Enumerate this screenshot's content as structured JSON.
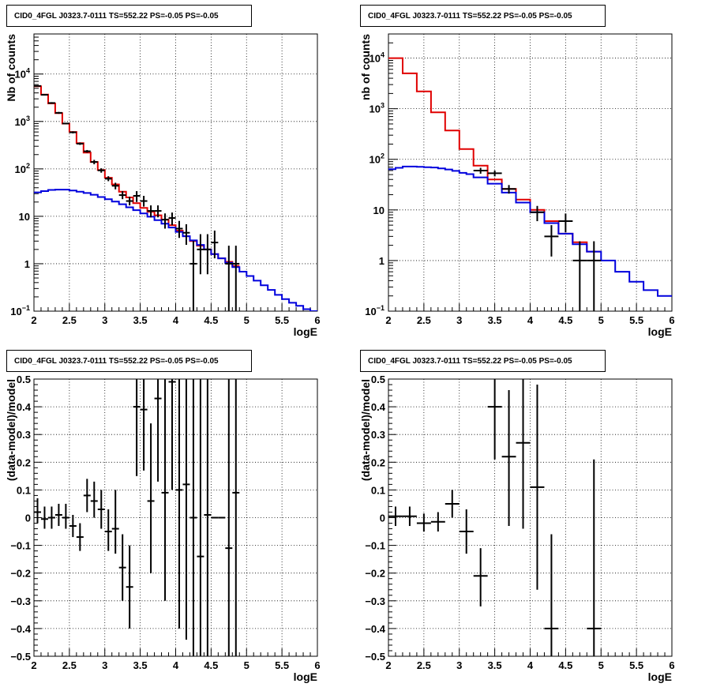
{
  "colors": {
    "background": "#ffffff",
    "axis": "#000000",
    "grid": "#000000",
    "data": "#000000",
    "total_model": "#e00000",
    "source_model": "#0000dd"
  },
  "chart_data": [
    {
      "id": "counts-wide",
      "type": "line",
      "title": "CID0_4FGL J0323.7-0111 TS=552.22 PS=-0.05 PS=-0.05",
      "xlabel": "logE",
      "ylabel": "Nb of counts",
      "xlim": [
        2,
        6
      ],
      "ylim": [
        0.1,
        70000
      ],
      "yscale": "log",
      "grid": true,
      "x_ticks": [
        "2",
        "2.5",
        "3",
        "3.5",
        "4",
        "4.5",
        "5",
        "5.5",
        "6"
      ],
      "y_ticks": [
        {
          "value": 0.1,
          "label": "10",
          "exp": "−1"
        },
        {
          "value": 1,
          "label": "1",
          "exp": ""
        },
        {
          "value": 10,
          "label": "10",
          "exp": ""
        },
        {
          "value": 100,
          "label": "10",
          "exp": "2"
        },
        {
          "value": 1000,
          "label": "10",
          "exp": "3"
        },
        {
          "value": 10000,
          "label": "10",
          "exp": "4"
        }
      ],
      "series": [
        {
          "name": "total model",
          "style": "step",
          "color": "#e00000",
          "edges": [
            2.0,
            2.1,
            2.2,
            2.3,
            2.4,
            2.5,
            2.6,
            2.7,
            2.8,
            2.9,
            3.0,
            3.1,
            3.2,
            3.3,
            3.4,
            3.5,
            3.6,
            3.7,
            3.8,
            3.9,
            4.0,
            4.1,
            4.2,
            4.3,
            4.4,
            4.5,
            4.6,
            4.7,
            4.8,
            4.9
          ],
          "values": [
            5500,
            3700,
            2400,
            1500,
            900,
            600,
            350,
            220,
            140,
            95,
            65,
            47,
            33,
            25,
            19,
            15,
            12.5,
            10.5,
            8.5,
            6.5,
            5,
            3.8,
            3.0,
            2.4,
            2.0,
            1.6,
            1.3,
            1.1,
            0.9
          ]
        },
        {
          "name": "source model",
          "style": "step",
          "color": "#0000dd",
          "edges": [
            2.0,
            2.1,
            2.2,
            2.3,
            2.4,
            2.5,
            2.6,
            2.7,
            2.8,
            2.9,
            3.0,
            3.1,
            3.2,
            3.3,
            3.4,
            3.5,
            3.6,
            3.7,
            3.8,
            3.9,
            4.0,
            4.1,
            4.2,
            4.3,
            4.4,
            4.5,
            4.6,
            4.7,
            4.8,
            4.9,
            5.0,
            5.1,
            5.2,
            5.3,
            5.4,
            5.5,
            5.6,
            5.7,
            5.8,
            5.9,
            6.0
          ],
          "values": [
            32,
            34,
            36,
            36.5,
            36.5,
            35,
            33,
            31,
            28.5,
            25.5,
            23,
            20.5,
            18,
            15.5,
            13.5,
            11.5,
            9.8,
            8.3,
            7,
            5.8,
            4.7,
            3.8,
            3.1,
            2.5,
            2.0,
            1.6,
            1.3,
            1.05,
            0.85,
            0.68,
            0.55,
            0.44,
            0.35,
            0.28,
            0.22,
            0.18,
            0.15,
            0.13,
            0.11,
            0.1
          ]
        },
        {
          "name": "data",
          "style": "errorbar",
          "color": "#000000",
          "x": [
            2.05,
            2.15,
            2.25,
            2.35,
            2.45,
            2.55,
            2.65,
            2.75,
            2.85,
            2.95,
            3.05,
            3.15,
            3.25,
            3.35,
            3.45,
            3.55,
            3.65,
            3.75,
            3.85,
            3.95,
            4.05,
            4.15,
            4.25,
            4.35,
            4.45,
            4.55,
            4.65,
            4.75,
            4.85
          ],
          "xerr": 0.05,
          "y": [
            5600,
            3650,
            2450,
            1520,
            905,
            590,
            340,
            235,
            140,
            93,
            62,
            44,
            28,
            21,
            27,
            21,
            13,
            13,
            8.5,
            9.2,
            5.5,
            4.5,
            1.0,
            2.0,
            2.0,
            2.8,
            0.0,
            1.0,
            1.0
          ],
          "ylow": [
            5450,
            3530,
            2350,
            1450,
            880,
            560,
            320,
            220,
            125,
            83,
            55,
            37,
            23,
            17,
            20,
            16,
            9.5,
            9.5,
            5.5,
            6.5,
            3.5,
            2.5,
            0.1,
            0.6,
            0.6,
            1.3,
            0.1,
            0.1,
            0.1
          ],
          "yhigh": [
            5750,
            3770,
            2550,
            1590,
            930,
            620,
            360,
            250,
            155,
            103,
            70,
            51,
            34,
            26,
            34,
            27,
            17,
            17,
            11.5,
            12,
            8,
            6.8,
            3.0,
            4.2,
            4.2,
            5.0,
            0.1,
            2.4,
            2.4
          ]
        }
      ]
    },
    {
      "id": "counts-coarse",
      "type": "line",
      "title": "CID0_4FGL J0323.7-0111 TS=552.22 PS=-0.05 PS=-0.05",
      "xlabel": "logE",
      "ylabel": "nb of counts",
      "xlim": [
        2,
        6
      ],
      "ylim": [
        0.1,
        30000
      ],
      "yscale": "log",
      "grid": true,
      "x_ticks": [
        "2",
        "2.5",
        "3",
        "3.5",
        "4",
        "4.5",
        "5",
        "5.5",
        "6"
      ],
      "y_ticks": [
        {
          "value": 0.1,
          "label": "10",
          "exp": "−1"
        },
        {
          "value": 1,
          "label": "1",
          "exp": ""
        },
        {
          "value": 10,
          "label": "10",
          "exp": ""
        },
        {
          "value": 100,
          "label": "10",
          "exp": "2"
        },
        {
          "value": 1000,
          "label": "10",
          "exp": "3"
        },
        {
          "value": 10000,
          "label": "10",
          "exp": "4"
        }
      ],
      "series": [
        {
          "name": "total model",
          "style": "step",
          "color": "#e00000",
          "edges": [
            2.0,
            2.2,
            2.4,
            2.6,
            2.8,
            3.0,
            3.2,
            3.4,
            3.6,
            3.8,
            4.0,
            4.2,
            4.4,
            4.6,
            4.8,
            5.0
          ],
          "values": [
            10000,
            5000,
            2200,
            850,
            370,
            160,
            75,
            40,
            26,
            16,
            10,
            6,
            3.4,
            2.3,
            1.5
          ]
        },
        {
          "name": "source model",
          "style": "step",
          "color": "#0000dd",
          "edges": [
            2.0,
            2.1,
            2.2,
            2.3,
            2.4,
            2.5,
            2.6,
            2.7,
            2.8,
            2.9,
            3.0,
            3.1,
            3.2,
            3.4,
            3.6,
            3.8,
            4.0,
            4.2,
            4.4,
            4.6,
            4.8,
            5.0,
            5.2,
            5.4,
            5.6,
            5.8,
            6.0
          ],
          "values": [
            64,
            68,
            72,
            72,
            71,
            70,
            69,
            66,
            63,
            59,
            54,
            51,
            44,
            33,
            22,
            14,
            9,
            5.5,
            3.4,
            2.1,
            1.5,
            1.0,
            0.6,
            0.38,
            0.26,
            0.2
          ]
        },
        {
          "name": "data",
          "style": "errorbar",
          "color": "#000000",
          "x": [
            3.3,
            3.5,
            3.7,
            4.1,
            4.3,
            4.5,
            4.7,
            4.9
          ],
          "xerr": 0.1,
          "y": [
            60,
            53,
            26,
            9,
            3,
            6,
            1,
            1
          ],
          "ylow": [
            52,
            46,
            21,
            6,
            1.2,
            3.6,
            0.1,
            0.1
          ],
          "yhigh": [
            68,
            60,
            31,
            12,
            5,
            8.5,
            2.4,
            2.4
          ]
        }
      ]
    },
    {
      "id": "residuals-wide",
      "type": "scatter",
      "title": "CID0_4FGL J0323.7-0111 TS=552.22 PS=-0.05 PS=-0.05",
      "xlabel": "logE",
      "ylabel": "(data-model)/model",
      "xlim": [
        2,
        6
      ],
      "ylim": [
        -0.5,
        0.5
      ],
      "yscale": "linear",
      "grid": true,
      "x_ticks": [
        "2",
        "2.5",
        "3",
        "3.5",
        "4",
        "4.5",
        "5",
        "5.5",
        "6"
      ],
      "y_ticks": [
        "−0.5",
        "−0.4",
        "−0.3",
        "−0.2",
        "−0.1",
        "0",
        "0.1",
        "0.2",
        "0.3",
        "0.4",
        "0.5"
      ],
      "series": [
        {
          "name": "residuals",
          "style": "errorbar",
          "color": "#000000",
          "x": [
            2.05,
            2.15,
            2.25,
            2.35,
            2.45,
            2.55,
            2.65,
            2.75,
            2.85,
            2.95,
            3.05,
            3.15,
            3.25,
            3.35,
            3.45,
            3.55,
            3.65,
            3.75,
            3.85,
            3.95,
            4.05,
            4.15,
            4.25,
            4.35,
            4.45,
            4.55,
            4.65,
            4.75,
            4.85
          ],
          "xerr": 0.05,
          "y": [
            0.02,
            -0.005,
            0.0,
            0.01,
            0.0,
            -0.03,
            -0.07,
            0.08,
            0.06,
            0.03,
            -0.05,
            -0.04,
            -0.18,
            -0.25,
            0.4,
            0.39,
            0.06,
            0.43,
            0.09,
            0.49,
            0.1,
            0.12,
            0.0,
            -0.14,
            0.01,
            0.0,
            0.0,
            -0.11,
            0.09
          ],
          "ylow": [
            -0.02,
            -0.04,
            -0.04,
            -0.03,
            -0.04,
            -0.07,
            -0.12,
            0.02,
            0.0,
            -0.04,
            -0.12,
            -0.13,
            -0.3,
            -0.4,
            0.15,
            0.17,
            -0.2,
            0.13,
            -0.3,
            0.1,
            -0.4,
            -0.44,
            -0.5,
            -0.5,
            -0.5,
            0.0,
            0.0,
            -0.5,
            -0.5
          ],
          "yhigh": [
            0.07,
            0.04,
            0.04,
            0.05,
            0.05,
            0.01,
            -0.02,
            0.14,
            0.13,
            0.1,
            0.03,
            0.1,
            -0.06,
            -0.1,
            0.5,
            0.5,
            0.34,
            0.5,
            0.5,
            0.5,
            0.5,
            0.5,
            0.5,
            0.5,
            0.5,
            0.0,
            0.0,
            0.5,
            0.5
          ]
        }
      ]
    },
    {
      "id": "residuals-coarse",
      "type": "scatter",
      "title": "CID0_4FGL J0323.7-0111 TS=552.22 PS=-0.05 PS=-0.05",
      "xlabel": "logE",
      "ylabel": "(data-model)/model",
      "xlim": [
        2,
        6
      ],
      "ylim": [
        -0.5,
        0.5
      ],
      "yscale": "linear",
      "grid": true,
      "x_ticks": [
        "2",
        "2.5",
        "3",
        "3.5",
        "4",
        "4.5",
        "5",
        "5.5",
        "6"
      ],
      "y_ticks": [
        "−0.5",
        "−0.4",
        "−0.3",
        "−0.2",
        "−0.1",
        "0",
        "0.1",
        "0.2",
        "0.3",
        "0.4",
        "0.5"
      ],
      "series": [
        {
          "name": "residuals",
          "style": "errorbar",
          "color": "#000000",
          "x": [
            2.1,
            2.3,
            2.5,
            2.7,
            2.9,
            3.1,
            3.3,
            3.5,
            3.7,
            3.9,
            4.1,
            4.3,
            4.9
          ],
          "xerr": 0.1,
          "y": [
            0.005,
            0.005,
            -0.02,
            -0.015,
            0.05,
            -0.05,
            -0.21,
            0.4,
            0.22,
            0.27,
            0.11,
            -0.4,
            -0.4
          ],
          "ylow": [
            -0.03,
            -0.03,
            -0.05,
            -0.05,
            0.0,
            -0.13,
            -0.32,
            0.21,
            -0.03,
            -0.04,
            -0.26,
            -0.5,
            -0.5
          ],
          "yhigh": [
            0.04,
            0.04,
            0.015,
            0.02,
            0.1,
            0.03,
            -0.11,
            0.5,
            0.46,
            0.5,
            0.48,
            -0.06,
            0.21
          ]
        }
      ]
    }
  ]
}
